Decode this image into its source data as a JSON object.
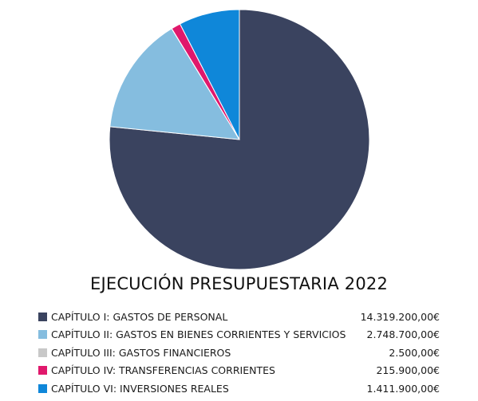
{
  "chart_data": {
    "type": "pie",
    "title": "EJECUCIÓN PRESUPUESTARIA 2022",
    "legend_position": "bottom",
    "start_angle": "12 o'clock",
    "direction": "clockwise",
    "slices": [
      {
        "label": "CAPÍTULO I: GASTOS DE PERSONAL",
        "value": 14319200.0,
        "display": "14.319.200,00€",
        "color": "#3a435f"
      },
      {
        "label": "CAPÍTULO II: GASTOS EN BIENES CORRIENTES Y SERVICIOS",
        "value": 2748700.0,
        "display": "2.748.700,00€",
        "color": "#85bddf"
      },
      {
        "label": "CAPÍTULO III: GASTOS FINANCIEROS",
        "value": 2500.0,
        "display": "2.500,00€",
        "color": "#c8c8c8"
      },
      {
        "label": "CAPÍTULO IV: TRANSFERENCIAS CORRIENTES",
        "value": 215900.0,
        "display": "215.900,00€",
        "color": "#e0186c"
      },
      {
        "label": "CAPÍTULO VI: INVERSIONES REALES",
        "value": 1411900.0,
        "display": "1.411.900,00€",
        "color": "#0f87d9"
      }
    ]
  }
}
